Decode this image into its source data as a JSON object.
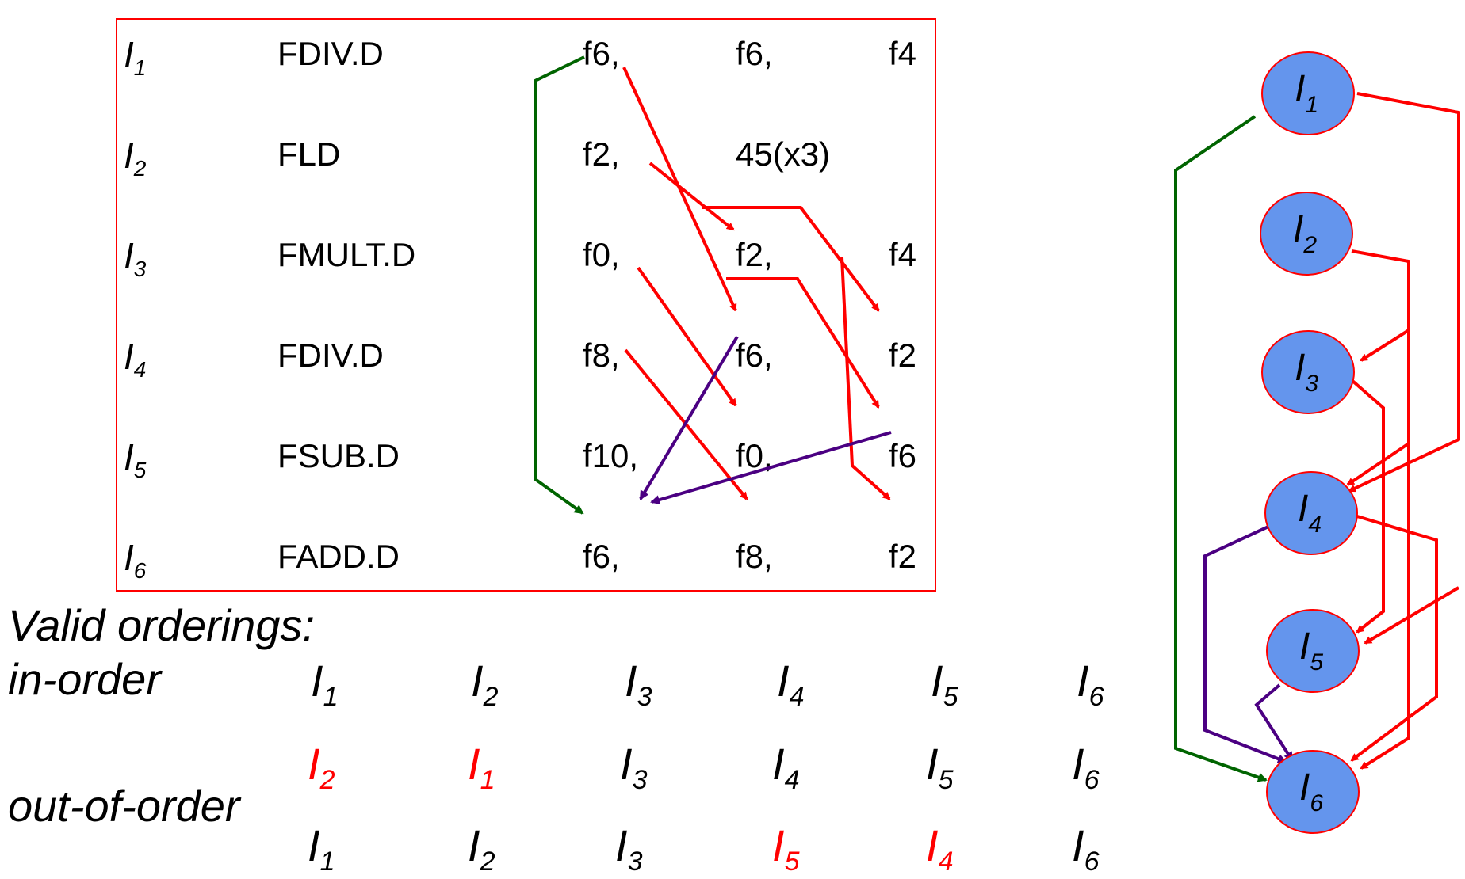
{
  "instructions": [
    {
      "label": "I",
      "sub": "1",
      "op": "FDIV.D",
      "args": [
        "f6,",
        "f6,",
        "f4"
      ]
    },
    {
      "label": "I",
      "sub": "2",
      "op": "FLD",
      "args": [
        "f2,",
        "45(x3)",
        ""
      ]
    },
    {
      "label": "I",
      "sub": "3",
      "op": "FMULT.D",
      "args": [
        "f0,",
        "f2,",
        "f4"
      ]
    },
    {
      "label": "I",
      "sub": "4",
      "op": "FDIV.D",
      "args": [
        "f8,",
        "f6,",
        "f2"
      ]
    },
    {
      "label": "I",
      "sub": "5",
      "op": "FSUB.D",
      "args": [
        "f10,",
        "f0,",
        "f6"
      ]
    },
    {
      "label": "I",
      "sub": "6",
      "op": "FADD.D",
      "args": [
        "f6,",
        "f8,",
        "f2"
      ]
    }
  ],
  "orderings": {
    "title": "Valid orderings:",
    "in_order_label": "in-order",
    "out_of_order_label": "out-of-order",
    "rows": [
      [
        {
          "l": "I",
          "s": "1",
          "red": false
        },
        {
          "l": "I",
          "s": "2",
          "red": false
        },
        {
          "l": "I",
          "s": "3",
          "red": false
        },
        {
          "l": "I",
          "s": "4",
          "red": false
        },
        {
          "l": "I",
          "s": "5",
          "red": false
        },
        {
          "l": "I",
          "s": "6",
          "red": false
        }
      ],
      [
        {
          "l": "I",
          "s": "2",
          "red": true
        },
        {
          "l": "I",
          "s": "1",
          "red": true
        },
        {
          "l": "I",
          "s": "3",
          "red": false
        },
        {
          "l": "I",
          "s": "4",
          "red": false
        },
        {
          "l": "I",
          "s": "5",
          "red": false
        },
        {
          "l": "I",
          "s": "6",
          "red": false
        }
      ],
      [
        {
          "l": "I",
          "s": "1",
          "red": false
        },
        {
          "l": "I",
          "s": "2",
          "red": false
        },
        {
          "l": "I",
          "s": "3",
          "red": false
        },
        {
          "l": "I",
          "s": "5",
          "red": true
        },
        {
          "l": "I",
          "s": "4",
          "red": true
        },
        {
          "l": "I",
          "s": "6",
          "red": false
        }
      ]
    ]
  },
  "graph_nodes": [
    {
      "label": "I",
      "sub": "1"
    },
    {
      "label": "I",
      "sub": "2"
    },
    {
      "label": "I",
      "sub": "3"
    },
    {
      "label": "I",
      "sub": "4"
    },
    {
      "label": "I",
      "sub": "5"
    },
    {
      "label": "I",
      "sub": "6"
    }
  ],
  "colors": {
    "raw": "#ff0000",
    "waw": "#006400",
    "war": "#4b0082",
    "node_fill": "#6495ed",
    "node_stroke": "#ff0000"
  }
}
